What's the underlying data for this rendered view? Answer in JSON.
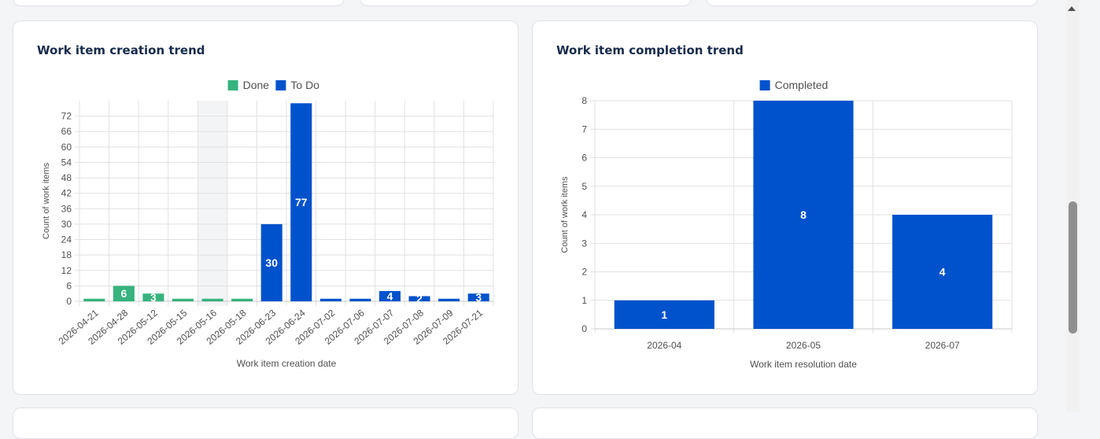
{
  "charts": {
    "creation": {
      "title": "Work item creation trend",
      "legend": [
        {
          "label": "Done",
          "color": "#36b37e"
        },
        {
          "label": "To Do",
          "color": "#0052cc"
        }
      ]
    },
    "completion": {
      "title": "Work item completion trend",
      "legend": [
        {
          "label": "Completed",
          "color": "#0052cc"
        }
      ]
    }
  },
  "chart_data": [
    {
      "type": "bar",
      "stacked": true,
      "title": "Work item creation trend",
      "xlabel": "Work item creation date",
      "ylabel": "Count of work items",
      "categories": [
        "2026-04-21",
        "2026-04-28",
        "2026-05-12",
        "2026-05-15",
        "2026-05-16",
        "2026-05-18",
        "2026-06-23",
        "2026-06-24",
        "2026-07-02",
        "2026-07-06",
        "2026-07-07",
        "2026-07-08",
        "2026-07-09",
        "2026-07-21"
      ],
      "series": [
        {
          "name": "Done",
          "color": "#36b37e",
          "values": [
            1,
            6,
            3,
            1,
            1,
            1,
            0,
            0,
            0,
            0,
            0,
            0,
            0,
            0
          ]
        },
        {
          "name": "To Do",
          "color": "#0052cc",
          "values": [
            0,
            0,
            0,
            0,
            0,
            0,
            30,
            77,
            1,
            1,
            4,
            2,
            1,
            3
          ]
        }
      ],
      "ylim": [
        0,
        78
      ],
      "yticks": [
        0,
        6,
        12,
        18,
        24,
        30,
        36,
        42,
        48,
        54,
        60,
        66,
        72
      ],
      "highlight_category": "2026-05-16",
      "legend_position": "top",
      "grid": true
    },
    {
      "type": "bar",
      "title": "Work item completion trend",
      "xlabel": "Work item resolution date",
      "ylabel": "Count of work items",
      "categories": [
        "2026-04",
        "2026-05",
        "2026-07"
      ],
      "series": [
        {
          "name": "Completed",
          "color": "#0052cc",
          "values": [
            1,
            8,
            4
          ]
        }
      ],
      "ylim": [
        0,
        8
      ],
      "yticks": [
        0,
        1,
        2,
        3,
        4,
        5,
        6,
        7,
        8
      ],
      "legend_position": "top",
      "grid": true
    }
  ]
}
